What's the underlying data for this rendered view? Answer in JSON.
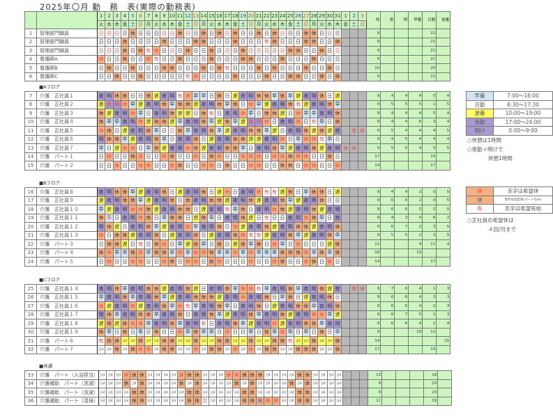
{
  "title": "2025年〇月 勤　務　表(実際の勤務表)",
  "header": {
    "days": [
      [
        "1",
        "火"
      ],
      [
        "2",
        "水"
      ],
      [
        "3",
        "木"
      ],
      [
        "4",
        "金"
      ],
      [
        "5",
        "土"
      ],
      [
        "6",
        "日"
      ],
      [
        "7",
        "月"
      ],
      [
        "8",
        "火"
      ],
      [
        "9",
        "水"
      ],
      [
        "10",
        "木"
      ],
      [
        "11",
        "金"
      ],
      [
        "12",
        "土"
      ],
      [
        "13",
        "日"
      ],
      [
        "14",
        "月"
      ],
      [
        "15",
        "火"
      ],
      [
        "16",
        "水"
      ],
      [
        "17",
        "木"
      ],
      [
        "18",
        "金"
      ],
      [
        "19",
        "土"
      ],
      [
        "20",
        "日"
      ],
      [
        "21",
        "月"
      ],
      [
        "22",
        "火"
      ],
      [
        "23",
        "水"
      ],
      [
        "24",
        "木"
      ],
      [
        "25",
        "金"
      ],
      [
        "26",
        "土"
      ],
      [
        "27",
        "日"
      ],
      [
        "28",
        "月"
      ],
      [
        "29",
        "火"
      ],
      [
        "30",
        "水"
      ],
      [
        "31",
        "木"
      ]
    ],
    "extra_days": [
      [
        "1",
        "金"
      ],
      [
        "2",
        "土"
      ],
      [
        "3",
        "日"
      ]
    ],
    "summary": [
      "休",
      "夜",
      "明",
      "早番",
      "日勤",
      "遅番"
    ]
  },
  "sections": [
    {
      "label": "",
      "rows": [
        {
          "no": "1",
          "name": "管理部門職員",
          "cells": "日! 日! 日! 日 休 日 日 日 日! 日! 休 日! 日 休 日 休 日! 休 日 日 休 日 休 日! 日 日 休 休 日 日! 日",
          "extra": [
            "",
            "",
            ""
          ],
          "sum": [
            "9",
            "",
            "",
            "",
            "22",
            ""
          ]
        },
        {
          "no": "2",
          "name": "管理部門職員",
          "cells": "日 日 日 休 日 日 日 日 休 日 日 日 休 休 日 日 日 休 日 日 日 有! 休 日 日 日 休 休 日 日 休",
          "extra": [
            "",
            "",
            ""
          ],
          "sum": [
            "9",
            "",
            "",
            "",
            "21",
            ""
          ]
        },
        {
          "no": "3",
          "name": "管理部門職員",
          "cells": "日! 日! 日! 休 日 休 有! 休! 日 日! 日 休 日 日 休 日 日! 日 休 日! 日! 日! 日! 日! 休 休 日 日 休 日 日!",
          "extra": [
            "",
            "",
            ""
          ],
          "sum": [
            "9",
            "",
            "",
            "",
            "21",
            ""
          ]
        },
        {
          "no": "4",
          "name": "看護師A",
          "cells": "休! 日 日 休 日 日 休! 有! 日 日 休 日 日 日 休 日 日 日 休 休 日 日 日 休 日 日 日 休 日 日 日",
          "extra": [
            "",
            "",
            ""
          ],
          "sum": [
            "9",
            "",
            "",
            "",
            "21",
            ""
          ]
        },
        {
          "no": "5",
          "name": "看護師B",
          "cells": "日 休 日 日 休 日 日 日 休 休 日 日 日 休 日 休 有! 日 日 日 休 日 休 日 日 日 休 日 日 休 日",
          "extra": [
            "",
            "",
            ""
          ],
          "sum": [
            "10",
            "",
            "",
            "",
            "20",
            ""
          ]
        },
        {
          "no": "6",
          "name": "看護師C",
          "cells": "日 日 休 日 日 休 日 日 日 日 日 有! 休! 日 日 日 日 休 日 日 日 休 日 日 休 休 日 日 休 日 休",
          "extra": [
            "",
            "",
            ""
          ],
          "sum": [
            "9",
            "",
            "",
            "",
            "21",
            ""
          ]
        }
      ]
    },
    {
      "label": "■Aフロア",
      "rows": [
        {
          "no": "7",
          "name": "介護　正社員１",
          "cells": "夜 明 休 休 日 日 休 遅 夜 明 有! 休! 早 早 日 休 日 遅 夜 明 休 休 早 休 早 遅 夜 明 休 日 遅",
          "extra": [
            "",
            "",
            ""
          ],
          "sum": [
            "9",
            "4",
            "4",
            "4",
            "5",
            "4"
          ]
        },
        {
          "no": "8",
          "name": "介護　正社員２",
          "cells": "遅 夜! 明! 休! 早 遅 夜 明 休 早 休 休 遅 夜 明 休 早 休 日 休! 早 遅 夜 明 休 有! 遅 夜 明 休 早",
          "extra": [
            "",
            "",
            ""
          ],
          "sum": [
            "9",
            "5",
            "5",
            "5",
            "1",
            "5"
          ]
        },
        {
          "no": "9",
          "name": "介護　正社員３",
          "cells": "休 遅 夜 明 休! 早 日 夜 明 休 遅 遅 日 休 有! 日 夜 明 休! 早 日 休 休 遅 日 休! 早 早 夜 明 休",
          "extra": [
            "",
            "",
            ""
          ],
          "sum": [
            "9",
            "4",
            "4",
            "4",
            "5",
            "4"
          ]
        },
        {
          "no": "10",
          "name": "介護　正社員４",
          "cells": "休 早 早 夜 明 休! 遅 休 休 遅 早 夜 明 休 早 遅 休 早 遅 夜! 明! 休! 日 夜 明 休! 日 有! 早 日 休",
          "extra": [
            "",
            "",
            ""
          ],
          "sum": [
            "9",
            "4",
            "4",
            "6",
            "3",
            "4"
          ]
        },
        {
          "no": "11",
          "name": "介護　正社員５",
          "cells": "休! 休 日 遅 夜 明 休 早 日 日! 休 早 夜 明 休 早 遅 夜 明 休 休 早 遅 日 夜 明 休 遅 休 遅 夜",
          "extra": [
            "",
            "有!",
            "休!"
          ],
          "sum": [
            "9",
            "5",
            "4",
            "4",
            "4",
            "5"
          ]
        },
        {
          "no": "12",
          "name": "介護　正社員６",
          "cells": "明 休 休 早 遅 夜 明 休 早 日 夜 明 休 日 遅 夜 明 休 休 遅 遅 夜 明 休! 日 早 休! 休! 有! 早 日",
          "extra": [
            "",
            "",
            ""
          ],
          "sum": [
            "9",
            "4",
            "5",
            "4",
            "4",
            "4"
          ]
        },
        {
          "no": "13",
          "name": "介護　正社員７",
          "cells": "早 日 遅 休! 休! 日 早 休 遅 夜 明 休! 休 遅 夜 明 休 休 早 日 夜 明 休 早 遅 夜 明 休 遅 夜 明",
          "extra": [
            "休!",
            "休!",
            ""
          ],
          "sum": [
            "9",
            "5",
            "5",
            "4",
            "3",
            "5"
          ]
        },
        {
          "no": "14",
          "name": "介護　パート１",
          "cells": "日 休! 日 日 休 休! 日 日 休! 休 日 日 休! 日 休 休! 日 日 休! 休! 休! 日 休! 休! 休 休! 休! 日 日 休 日",
          "extra": [
            "",
            "",
            ""
          ],
          "sum": [
            "17",
            "",
            "",
            "",
            "14",
            ""
          ]
        },
        {
          "no": "15",
          "name": "介護　パート２",
          "cells": "日 日 休! 日 日 休! 休! 日 日 休! 休 日 日 休! 休! 日 休 日 日 休! 休! 日 日 休 休 日 休! 休! 日 日 休!",
          "extra": [
            "",
            "",
            ""
          ],
          "sum": [
            "14",
            "",
            "",
            "",
            "17",
            ""
          ]
        }
      ]
    },
    {
      "label": "■Bフロア",
      "rows": [
        {
          "no": "16",
          "name": "介護　正社員８",
          "cells": "夜 明 休 休 早 遅 夜 明 休 日 遅 夜 明 休 日 遅 休! 日 夜 明 休! 有! 有! 遅 休 日 早 休 休 日 遅",
          "extra": [
            "",
            "",
            ""
          ],
          "sum": [
            "9",
            "4",
            "4",
            "2",
            "5",
            "5"
          ]
        },
        {
          "no": "17",
          "name": "介護　正社員９",
          "cells": "遅 夜 明 休 休 早 遅 夜 明 休 日 休 夜 明 休 休 遅 夜 明 休 遅 夜 明 休 早 遅 夜 明 休 日 日",
          "extra": [
            "",
            "",
            ""
          ],
          "sum": [
            "9",
            "6",
            "6",
            "2",
            "3",
            "5"
          ]
        },
        {
          "no": "18",
          "name": "介護　正社員１０",
          "cells": "早 遅 夜 明 休! 休! 休 遅 夜 明 休 休 日 遅 夜 明 有! 早 休 日 夜 明 休! 休 遅 夜 明 休 遅 夜 明",
          "extra": [
            "",
            "",
            ""
          ],
          "sum": [
            "9",
            "6",
            "6",
            "2",
            "2",
            "5"
          ]
        },
        {
          "no": "19",
          "name": "介護　正社員１１",
          "cells": "休 早! 日 夜 明 休! 休 日 早 休 休 日 遅 休 早 日 夜 明 休 遅 日 有! 日 日 夜 明 休! 休 早 日 夜",
          "extra": [
            "",
            "",
            ""
          ],
          "sum": [
            "9",
            "4",
            "3",
            "4",
            "6",
            "2"
          ]
        },
        {
          "no": "20",
          "name": "介護　正社員１２",
          "cells": "明 休 遅 日 夜 明 休 早 遅 夜 明 休! 早 夜 明 休 日 休! 遅 夜 明 休 遅 夜 明 休 休 遅 夜 明 休",
          "extra": [
            "",
            "",
            ""
          ],
          "sum": [
            "9",
            "6",
            "7",
            "2",
            "3",
            "5"
          ]
        },
        {
          "no": "21",
          "name": "介護　正社員１３",
          "cells": "休! 日 休 休 遅 夜 明 休 日 遅 夜 明 休 日 遅 夜 明 休 休! 有! 有! 遅 夜 明 休 早 遅 夜 明 休 早",
          "extra": [
            "",
            "",
            ""
          ],
          "sum": [
            "9",
            "5",
            "5",
            "2",
            "3",
            "5"
          ]
        },
        {
          "no": "22",
          "name": "介護　パート３",
          "cells": "日 休 休 遅 日 有! 日 休 休! 日 早 遅 休 早 日 休 日 遅 休 早 休 日 休! 早 日 休! 日 日 日 遅 休",
          "extra": [
            "",
            "",
            ""
          ],
          "sum": [
            "11",
            "",
            "",
            "4",
            "11",
            "4"
          ]
        },
        {
          "no": "23",
          "name": "介護　パート４",
          "cells": "休 休! 早 早 休 休! 早 休 休 早 休! 早 休! 休! 休 早 早 休! 早 休! 早 早 早 休 休 休 休! 早 休 早 休",
          "extra": [
            "",
            "",
            ""
          ],
          "sum": [
            "18",
            "",
            "",
            "13",
            "",
            ""
          ]
        },
        {
          "no": "24",
          "name": "介護　パート５",
          "cells": "日 休! 日 日 休! 休! 日 日 休! 休 日 休! 休! 日 休 休! 日 日 日 休! 日 日 休! 休 日 日 休! 休 日 休! 日",
          "extra": [
            "",
            "",
            ""
          ],
          "sum": [
            "14",
            "",
            "",
            "",
            "17",
            ""
          ]
        }
      ]
    },
    {
      "label": "■Cフロア",
      "rows": [
        {
          "no": "25",
          "name": "介護　正社員１４",
          "cells": "夜 明 休 早 夜 明 休 休 遅 夜 明 休 遅 日 夜 明 休 早 休! 休! 有! 早 夜 明 休 早 夜 明 休 遅 夜",
          "extra": [
            "",
            "有!",
            "休!"
          ],
          "sum": [
            "9",
            "7",
            "6",
            "4",
            "1",
            "3"
          ]
        },
        {
          "no": "26",
          "name": "介護　正社員１５",
          "cells": "早 夜 明 休 早 夜 明 休 早 遅 夜 明 休 休 休 遅 夜 明 休! 夜 明 休 日 早 休 日 遅 夜 明 休 日",
          "extra": [
            "",
            "",
            ""
          ],
          "sum": [
            "9",
            "6",
            "6",
            "4",
            "3",
            "3"
          ]
        },
        {
          "no": "27",
          "name": "介護　正社員１６",
          "cells": "休! 遅 夜 明 休! 遅 夜 明 休 早 休! 有! 早 夜 明 休 早 日 夜 明 休 日 遅 夜 明 休 休 早 夜 明 休",
          "extra": [
            "",
            "",
            ""
          ],
          "sum": [
            "9",
            "6",
            "6",
            "4",
            "2",
            "3"
          ]
        },
        {
          "no": "28",
          "name": "介護　正社員１７",
          "cells": "明 休 早 夜 明 休 休 早 夜 明 休 日 夜 明 休 早 遅 夜 明 休 早 夜 明 休 遅 夜 明 休! 休! 早 遅",
          "extra": [
            "",
            "",
            ""
          ],
          "sum": [
            "9",
            "6",
            "7",
            "5",
            "1",
            "3"
          ]
        },
        {
          "no": "29",
          "name": "介護　正社員１８",
          "cells": "遅 休 遅 休 休! 休! 早 夜 明 休 早 夜 明 有! 日 夜 明 休 早 遅 夜 明 休! 遅 夜 明 休 休 早 夜 明",
          "extra": [
            "",
            "",
            ""
          ],
          "sum": [
            "9",
            "6",
            "6",
            "4",
            "1",
            "4"
          ]
        },
        {
          "no": "30",
          "name": "介護　正社員１９",
          "cells": "休 早 日 休 日 早 日 休 日 日 休! 早 休 早 早 日 休! 日 日 早 日 休 早 休! 早 日 早 日 休 日 早",
          "extra": [
            "",
            "",
            ""
          ],
          "sum": [
            "9",
            "",
            "",
            "10",
            "12",
            ""
          ]
        },
        {
          "no": "31",
          "name": "介護　パート６",
          "cells": "有! 休 休 日4+ 日4+ 休 日4+ 日4+ 休 休 日4+ 日4+ 休 日4+ 日4+ 休 休 日4+ 日4+ 休 日4+ 日4+ 休 休 有! 日4+ 日4+ 休 日4+ 日4+ 休",
          "extra": [
            "",
            "",
            ""
          ],
          "sum": [
            "14",
            "",
            "",
            "",
            "",
            "15"
          ]
        },
        {
          "no": "32",
          "name": "介護　パート７",
          "cells": "日4 日4 休 日4 休 休! 休! 日4 休 休 日4 日4 休! 日4 休 休 日4 休! 日4 休! 日4 休 休 日4 日4 休 休 休 日4 日4 休",
          "extra": [
            "",
            "",
            ""
          ],
          "sum": [
            "17",
            "",
            "",
            "",
            "14",
            ""
          ]
        }
      ]
    },
    {
      "label": "■共通",
      "rows": [
        {
          "no": "33",
          "name": "介護　パート（入浴担当）",
          "cells": "日4 日4 日4 休! 休 休 日4 日4 日4 日4 休! 休 休 日4 日4 日4 休! 休! 休 休 休 日4 日4 日4 日4 休 休 日4 日4 日4 日4",
          "extra": [
            "",
            "",
            ""
          ],
          "sum": [
            "13",
            "",
            "",
            "",
            "18",
            ""
          ]
        },
        {
          "no": "34",
          "name": "介護補助　パート（洗濯）",
          "cells": "日4 日4 日4 休 日4 休 日4 日4 日4 日4 休 日4 休 日4 日4 日4 日4 休 日4 休 日4 日4 日4 日4 休 日4 休 日4 日4 日4 日4",
          "extra": [
            "",
            "",
            ""
          ],
          "sum": [
            "8",
            "",
            "",
            "",
            "23",
            ""
          ]
        },
        {
          "no": "35",
          "name": "介護補助　パート（洗濯）",
          "cells": "日4 日4 日4 日4 休 休 日4 日4 日4 日4 日4 休 休 日4 日4 日4 日4 日4 休 休 日4 日4 日4 日4 日4 休 休 日4 日4 日4 日4",
          "extra": [
            "",
            "",
            ""
          ],
          "sum": [
            "8",
            "",
            "",
            "",
            "23",
            ""
          ]
        },
        {
          "no": "36",
          "name": "介護補助　パート（清掃）",
          "cells": "日4 日4 日4 日4 休 休 日4 日4 日4 日4 日4 休 休 欠! 日4 日4 日4 日4 休 休 休^ 休! 休! 日4 日4 休 休 日4 日4 日4 日4",
          "extra": [
            "",
            "",
            ""
          ],
          "sum": [
            "11",
            "",
            "",
            "",
            "19",
            ""
          ]
        }
      ]
    }
  ],
  "legend_shifts": [
    {
      "key": "早番",
      "time": "7:00～16:00"
    },
    {
      "key": "日勤",
      "time": "8:30～17:30"
    },
    {
      "key": "遅番",
      "time": "10:00～19:00"
    },
    {
      "key": "夜勤",
      "time": "17:00～24:00"
    },
    {
      "key": "明け",
      "time": "0:00～9:00"
    }
  ],
  "notes_shift": [
    "○休憩は1時間",
    "○夜勤＋明けで",
    "休憩1時間"
  ],
  "legend_marks": [
    {
      "key": "休",
      "desc": "赤字は希望休"
    },
    {
      "key": "休",
      "desc": "黒字は指定休(パートのみ)"
    },
    {
      "key": "有",
      "desc": "赤字は希望有給"
    }
  ],
  "notes_marks": [
    "○正社員の希望休は",
    "４回/月まで"
  ],
  "colors": {
    "off": "#f4b184",
    "early": "#d4e4f2",
    "late": "#ffff66",
    "night": "#a99ad0",
    "summary": "#ccf5c0",
    "disabled": "#b8b8b8",
    "hope": "#f04040"
  }
}
